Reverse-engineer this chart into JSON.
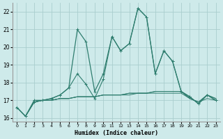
{
  "xlabel": "Humidex (Indice chaleur)",
  "x": [
    0,
    1,
    2,
    3,
    4,
    5,
    6,
    7,
    8,
    9,
    10,
    11,
    12,
    13,
    14,
    15,
    16,
    17,
    18,
    19,
    20,
    21,
    22,
    23
  ],
  "series": [
    [
      16.6,
      16.1,
      16.9,
      17.0,
      17.0,
      17.1,
      17.1,
      17.2,
      17.2,
      17.2,
      17.3,
      17.3,
      17.3,
      17.3,
      17.4,
      17.4,
      17.4,
      17.4,
      17.4,
      17.4,
      17.1,
      16.9,
      17.1,
      17.0
    ],
    [
      16.6,
      16.1,
      16.9,
      17.0,
      17.0,
      17.1,
      17.1,
      17.2,
      17.2,
      17.2,
      17.3,
      17.3,
      17.3,
      17.4,
      17.4,
      17.4,
      17.5,
      17.5,
      17.5,
      17.5,
      17.1,
      16.9,
      17.3,
      17.1
    ],
    [
      16.6,
      16.1,
      16.9,
      17.0,
      17.0,
      17.1,
      17.1,
      17.2,
      17.2,
      17.2,
      17.3,
      17.3,
      17.3,
      17.4,
      17.4,
      17.4,
      17.5,
      17.5,
      17.5,
      17.5,
      17.1,
      16.9,
      17.3,
      17.1
    ],
    [
      16.6,
      16.1,
      16.9,
      17.0,
      17.1,
      17.3,
      17.7,
      18.5,
      17.9,
      17.1,
      18.2,
      20.6,
      19.8,
      20.2,
      22.2,
      21.7,
      18.5,
      19.8,
      19.2,
      17.5,
      17.2,
      16.8,
      17.3,
      17.0
    ],
    [
      16.6,
      16.1,
      17.0,
      17.0,
      17.1,
      17.3,
      17.7,
      21.0,
      20.3,
      17.5,
      18.5,
      20.6,
      19.8,
      20.2,
      22.2,
      21.7,
      18.5,
      19.8,
      19.2,
      17.5,
      17.2,
      16.8,
      17.3,
      17.0
    ]
  ],
  "line_color": "#2e7d6e",
  "bg_color": "#ceeaea",
  "grid_color": "#aacece",
  "ylim": [
    15.8,
    22.5
  ],
  "yticks": [
    16,
    17,
    18,
    19,
    20,
    21,
    22
  ],
  "xlim": [
    -0.5,
    23.5
  ]
}
